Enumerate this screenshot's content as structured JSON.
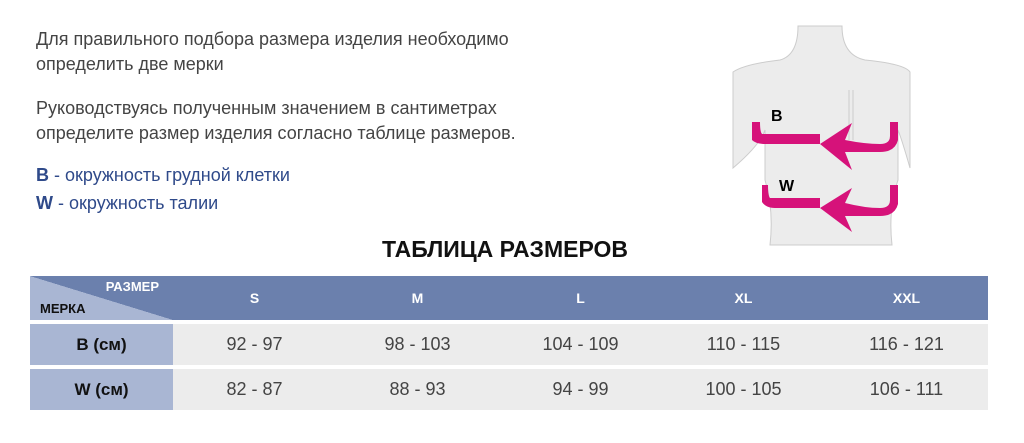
{
  "intro": {
    "line1": "Для правильного подбора размера изделия необходимо",
    "line2": "определить две мерки",
    "line3": "Руководствуясь полученным значением в сантиметрах",
    "line4": "определите размер изделия согласно таблице размеров."
  },
  "legend": [
    {
      "key": "B",
      "text": " - окружность грудной клетки"
    },
    {
      "key": "W",
      "text": " - окружность талии"
    }
  ],
  "illustration": {
    "label_b": "B",
    "label_w": "W",
    "arrow_color": "#d6127a"
  },
  "table": {
    "title": "ТАБЛИЦА РАЗМЕРОВ",
    "corner_size": "РАЗМЕР",
    "corner_measure": "МЕРКА",
    "sizes": [
      "S",
      "M",
      "L",
      "XL",
      "XXL"
    ],
    "rows": [
      {
        "label": "B (см)",
        "values": [
          "92 - 97",
          "98 - 103",
          "104 - 109",
          "110 - 115",
          "116 - 121"
        ]
      },
      {
        "label": "W (см)",
        "values": [
          "82 - 87",
          "88 - 93",
          "94 - 99",
          "100 - 105",
          "106 - 111"
        ]
      }
    ]
  },
  "colors": {
    "header": "#6b80ad",
    "label_cell": "#a9b6d3",
    "data_cell": "#ececec",
    "legend_text": "#2f4a8a"
  }
}
